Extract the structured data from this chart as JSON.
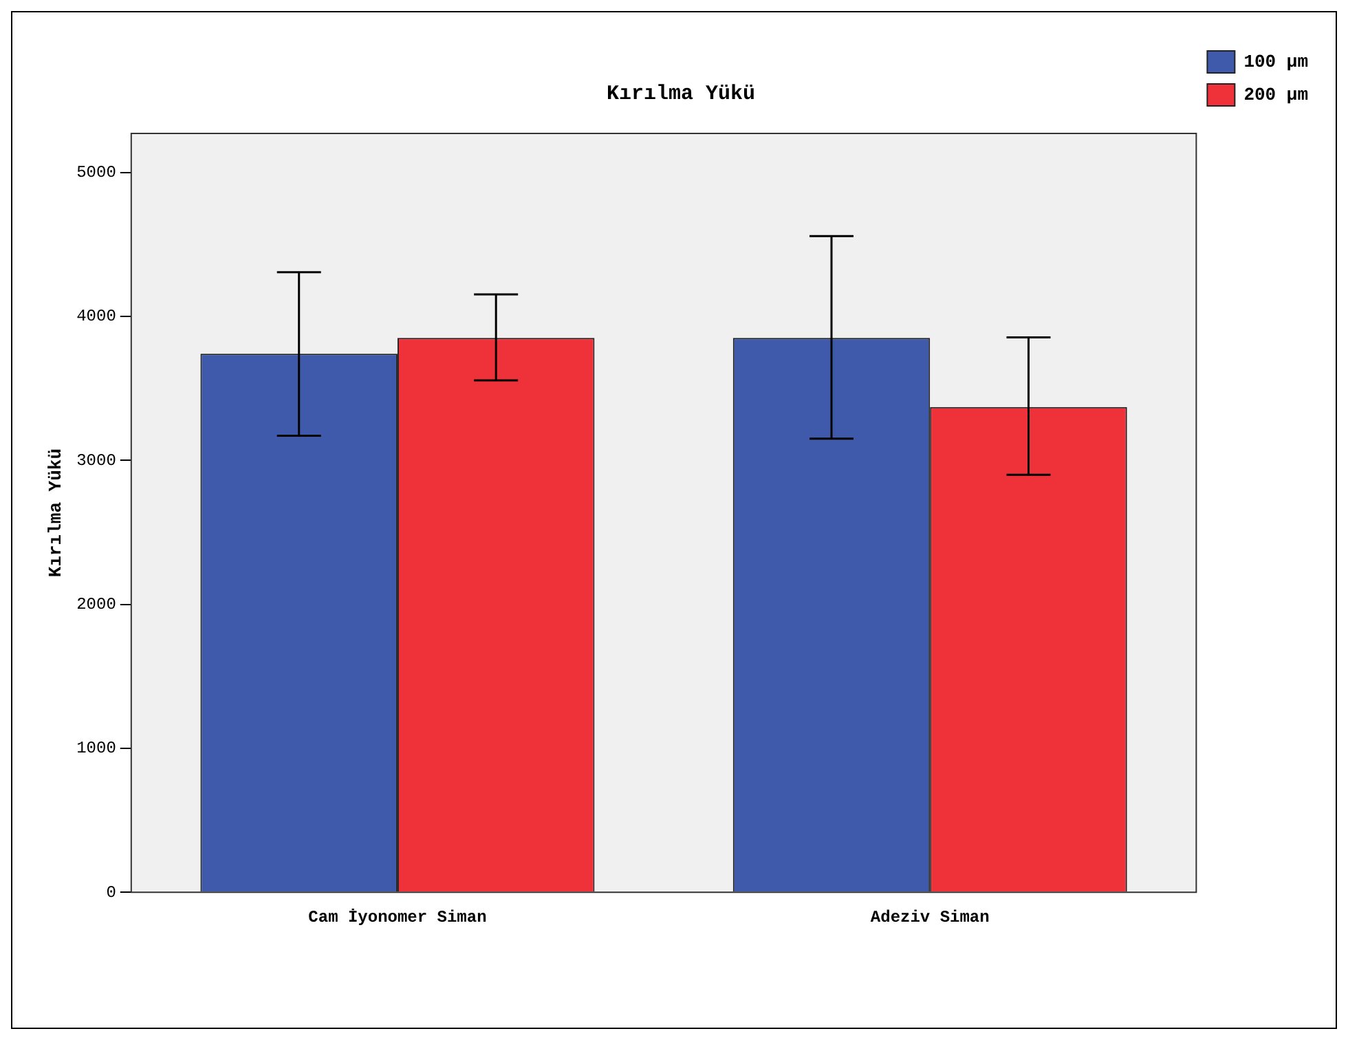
{
  "chart_data": {
    "type": "bar",
    "title": "Kırılma Yükü",
    "ylabel": "Kırılma Yükü",
    "categories": [
      "Cam İyonomer Siman",
      "Adeziv Siman"
    ],
    "series": [
      {
        "name": "100 µm",
        "color": "#3f59ab",
        "values": [
          3740,
          3850
        ],
        "errors": [
          [
            3170,
            4306
          ],
          [
            3150,
            4557
          ]
        ]
      },
      {
        "name": "200 µm",
        "color": "#ef3239",
        "values": [
          3850,
          3370
        ],
        "errors": [
          [
            3555,
            4152
          ],
          [
            2900,
            3854
          ]
        ]
      }
    ],
    "ylim": [
      0,
      5270
    ],
    "yticks": [
      0,
      1000,
      2000,
      3000,
      4000,
      5000
    ],
    "grid": false,
    "legend": "top right"
  }
}
